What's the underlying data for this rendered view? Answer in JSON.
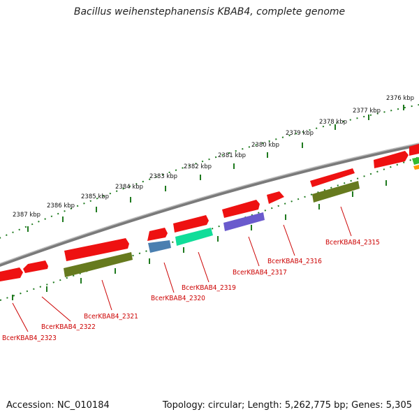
{
  "title": "Bacillus weihenstephanensis KBAB4, complete genome",
  "footer": {
    "accession": "Accession: NC_010184",
    "topology": "Topology: circular; Length: 5,262,775 bp; Genes: 5,305"
  },
  "kbp_labels": [
    "2376 kbp",
    "2377 kbp",
    "2378 kbp",
    "2379 kbp",
    "2380 kbp",
    "2381 kbp",
    "2382 kbp",
    "2383 kbp",
    "2384 kbp",
    "2385 kbp",
    "2386 kbp",
    "2387 kbp"
  ],
  "gene_labels": [
    "BcerKBAB4_2315",
    "BcerKBAB4_2316",
    "BcerKBAB4_2317",
    "BcerKBAB4_2319",
    "BcerKBAB4_2320",
    "BcerKBAB4_2321",
    "BcerKBAB4_2322",
    "BcerKBAB4_2323"
  ],
  "colors": {
    "genome_arc": "#7a7a7a",
    "tick_track": "#1f7a1f",
    "gene_red": "#ee1111",
    "gene_olive": "#667a1e",
    "gene_blue": "#4a7fb0",
    "gene_teal": "#11dd99",
    "gene_purple": "#6a5acd",
    "label_red": "#cc0000"
  }
}
